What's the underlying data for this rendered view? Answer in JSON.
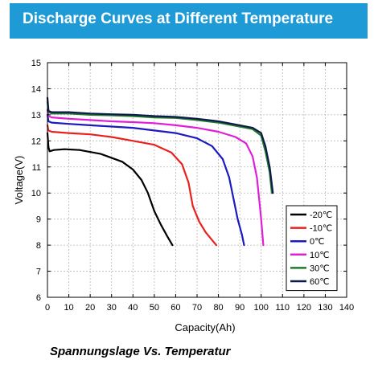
{
  "header": {
    "title": "Discharge Curves at Different Temperature"
  },
  "caption": "Spannungslage Vs. Temperatur",
  "chart_data": {
    "type": "line",
    "title": "Discharge Curves at Different Temperature",
    "xlabel": "Capacity(Ah)",
    "ylabel": "Voltage(V)",
    "xlim": [
      0,
      140
    ],
    "ylim": [
      6,
      15
    ],
    "xticks": [
      0,
      10,
      20,
      30,
      40,
      50,
      60,
      70,
      80,
      90,
      100,
      110,
      120,
      130,
      140
    ],
    "yticks": [
      6,
      7,
      8,
      9,
      10,
      11,
      12,
      13,
      14,
      15
    ],
    "grid": true,
    "legend": "bottom-right",
    "series": [
      {
        "name": "-20℃",
        "color": "#000000",
        "x": [
          0,
          0.5,
          1,
          3,
          8,
          15,
          25,
          35,
          40,
          44,
          47,
          50,
          53,
          56,
          58.5
        ],
        "y": [
          12.3,
          11.75,
          11.6,
          11.65,
          11.68,
          11.65,
          11.5,
          11.2,
          10.9,
          10.5,
          10.0,
          9.3,
          8.8,
          8.35,
          8.0
        ]
      },
      {
        "name": "-10℃",
        "color": "#e8211f",
        "x": [
          0,
          0.5,
          2,
          10,
          20,
          30,
          40,
          50,
          58,
          63,
          66,
          68,
          71,
          74,
          76,
          79
        ],
        "y": [
          12.6,
          12.4,
          12.35,
          12.3,
          12.25,
          12.15,
          12.0,
          11.85,
          11.55,
          11.1,
          10.4,
          9.5,
          8.9,
          8.5,
          8.3,
          8.0
        ]
      },
      {
        "name": "0℃",
        "color": "#1a1ac0",
        "x": [
          0,
          0.5,
          2,
          10,
          20,
          30,
          40,
          50,
          60,
          70,
          77,
          82,
          85,
          87,
          89,
          91,
          92
        ],
        "y": [
          13.0,
          12.75,
          12.7,
          12.65,
          12.6,
          12.55,
          12.5,
          12.4,
          12.3,
          12.1,
          11.8,
          11.3,
          10.6,
          9.8,
          9.0,
          8.4,
          8.0
        ]
      },
      {
        "name": "10℃",
        "color": "#e01ed8",
        "x": [
          0,
          0.5,
          2,
          10,
          20,
          30,
          40,
          50,
          60,
          70,
          80,
          88,
          93,
          96,
          98,
          99,
          100,
          101
        ],
        "y": [
          13.2,
          12.95,
          12.9,
          12.85,
          12.8,
          12.75,
          12.72,
          12.68,
          12.6,
          12.5,
          12.35,
          12.15,
          11.9,
          11.4,
          10.6,
          9.8,
          9.0,
          8.0
        ]
      },
      {
        "name": "30℃",
        "color": "#1f7a2e",
        "x": [
          0,
          0.5,
          2,
          10,
          20,
          30,
          40,
          50,
          60,
          70,
          80,
          90,
          96,
          100,
          102,
          104,
          105
        ],
        "y": [
          13.5,
          13.1,
          13.05,
          13.05,
          13.0,
          12.98,
          12.95,
          12.9,
          12.88,
          12.8,
          12.7,
          12.55,
          12.45,
          12.2,
          11.6,
          10.8,
          10.0
        ]
      },
      {
        "name": "60℃",
        "color": "#0d1a4a",
        "x": [
          0,
          0.5,
          2,
          10,
          20,
          30,
          40,
          50,
          60,
          70,
          80,
          90,
          96,
          100,
          102,
          104,
          105.5
        ],
        "y": [
          13.65,
          13.15,
          13.1,
          13.1,
          13.05,
          13.02,
          13.0,
          12.95,
          12.92,
          12.85,
          12.75,
          12.6,
          12.5,
          12.3,
          11.8,
          11.0,
          10.0
        ]
      }
    ]
  }
}
